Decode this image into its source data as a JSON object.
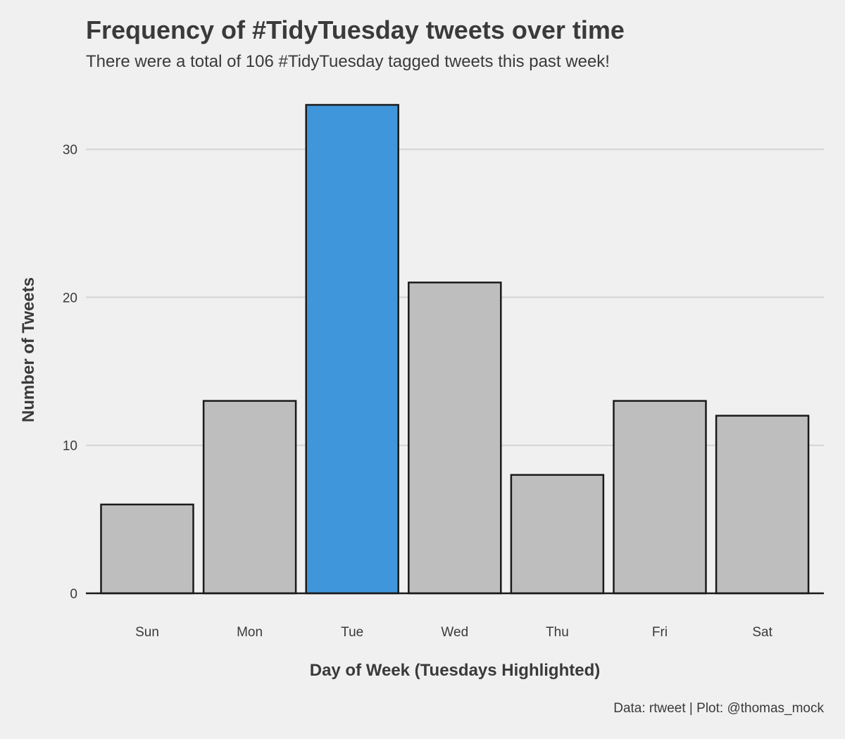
{
  "title": "Frequency of #TidyTuesday tweets over time",
  "subtitle": "There were a total of 106 #TidyTuesday tagged tweets this past week!",
  "caption": "Data: rtweet | Plot: @thomas_mock",
  "colors": {
    "background": "#f0f0f0",
    "bar_default": "#bebebe",
    "bar_highlight": "#4096da",
    "bar_outline": "#1a1a1a",
    "grid": "#d4d4d4",
    "text": "#3a3a3a"
  },
  "chart_data": {
    "type": "bar",
    "title": "Frequency of #TidyTuesday tweets over time",
    "subtitle": "There were a total of 106 #TidyTuesday tagged tweets this past week!",
    "xlabel": "Day of Week (Tuesdays Highlighted)",
    "ylabel": "Number of Tweets",
    "categories": [
      "Sun",
      "Mon",
      "Tue",
      "Wed",
      "Thu",
      "Fri",
      "Sat"
    ],
    "values": [
      6,
      13,
      33,
      21,
      8,
      13,
      12
    ],
    "highlight": [
      "Tue"
    ],
    "yticks": [
      0,
      10,
      20,
      30
    ],
    "ylim": [
      0,
      33
    ],
    "grid": "horizontal major",
    "legend": "none"
  }
}
